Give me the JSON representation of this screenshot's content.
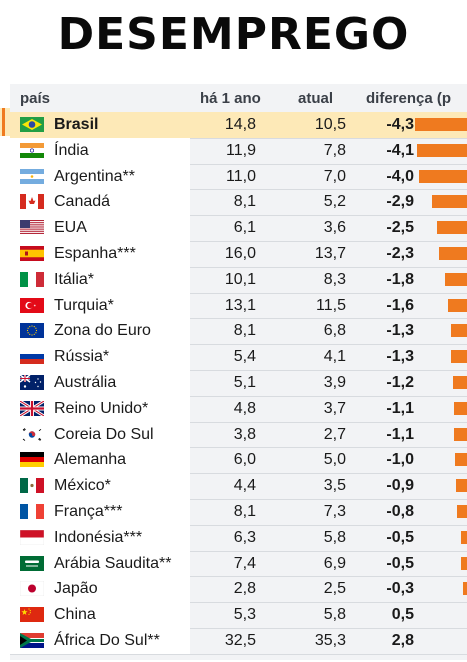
{
  "title": "DESEMPREGO",
  "columns": {
    "country": "país",
    "year_ago": "há 1 ano",
    "current": "atual",
    "difference": "diferença (p"
  },
  "highlight_color": "#fde9b7",
  "bar_color": "#ef7a1f",
  "chart_data": {
    "type": "table",
    "rows": [
      {
        "country": "Brasil",
        "flag": "brazil-flag-icon",
        "year_ago": "14,8",
        "current": "10,5",
        "difference": "-4,3",
        "diff_value": -4.3,
        "highlight": true
      },
      {
        "country": "Índia",
        "flag": "india-flag-icon",
        "year_ago": "11,9",
        "current": "7,8",
        "difference": "-4,1",
        "diff_value": -4.1
      },
      {
        "country": "Argentina**",
        "flag": "argentina-flag-icon",
        "year_ago": "11,0",
        "current": "7,0",
        "difference": "-4,0",
        "diff_value": -4.0
      },
      {
        "country": "Canadá",
        "flag": "canada-flag-icon",
        "year_ago": "8,1",
        "current": "5,2",
        "difference": "-2,9",
        "diff_value": -2.9
      },
      {
        "country": "EUA",
        "flag": "usa-flag-icon",
        "year_ago": "6,1",
        "current": "3,6",
        "difference": "-2,5",
        "diff_value": -2.5
      },
      {
        "country": "Espanha***",
        "flag": "spain-flag-icon",
        "year_ago": "16,0",
        "current": "13,7",
        "difference": "-2,3",
        "diff_value": -2.3
      },
      {
        "country": "Itália*",
        "flag": "italy-flag-icon",
        "year_ago": "10,1",
        "current": "8,3",
        "difference": "-1,8",
        "diff_value": -1.8
      },
      {
        "country": "Turquia*",
        "flag": "turkey-flag-icon",
        "year_ago": "13,1",
        "current": "11,5",
        "difference": "-1,6",
        "diff_value": -1.6
      },
      {
        "country": "Zona do Euro",
        "flag": "eurozone-flag-icon",
        "year_ago": "8,1",
        "current": "6,8",
        "difference": "-1,3",
        "diff_value": -1.3
      },
      {
        "country": "Rússia*",
        "flag": "russia-flag-icon",
        "year_ago": "5,4",
        "current": "4,1",
        "difference": "-1,3",
        "diff_value": -1.3
      },
      {
        "country": "Austrália",
        "flag": "australia-flag-icon",
        "year_ago": "5,1",
        "current": "3,9",
        "difference": "-1,2",
        "diff_value": -1.2
      },
      {
        "country": "Reino Unido*",
        "flag": "uk-flag-icon",
        "year_ago": "4,8",
        "current": "3,7",
        "difference": "-1,1",
        "diff_value": -1.1
      },
      {
        "country": "Coreia Do Sul",
        "flag": "south-korea-flag-icon",
        "year_ago": "3,8",
        "current": "2,7",
        "difference": "-1,1",
        "diff_value": -1.1
      },
      {
        "country": "Alemanha",
        "flag": "germany-flag-icon",
        "year_ago": "6,0",
        "current": "5,0",
        "difference": "-1,0",
        "diff_value": -1.0
      },
      {
        "country": "México*",
        "flag": "mexico-flag-icon",
        "year_ago": "4,4",
        "current": "3,5",
        "difference": "-0,9",
        "diff_value": -0.9
      },
      {
        "country": "França***",
        "flag": "france-flag-icon",
        "year_ago": "8,1",
        "current": "7,3",
        "difference": "-0,8",
        "diff_value": -0.8
      },
      {
        "country": "Indonésia***",
        "flag": "indonesia-flag-icon",
        "year_ago": "6,3",
        "current": "5,8",
        "difference": "-0,5",
        "diff_value": -0.5
      },
      {
        "country": "Arábia Saudita**",
        "flag": "saudi-arabia-flag-icon",
        "year_ago": "7,4",
        "current": "6,9",
        "difference": "-0,5",
        "diff_value": -0.5
      },
      {
        "country": "Japão",
        "flag": "japan-flag-icon",
        "year_ago": "2,8",
        "current": "2,5",
        "difference": "-0,3",
        "diff_value": -0.3
      },
      {
        "country": "China",
        "flag": "china-flag-icon",
        "year_ago": "5,3",
        "current": "5,8",
        "difference": "0,5",
        "diff_value": 0.5
      },
      {
        "country": "África Do Sul**",
        "flag": "south-africa-flag-icon",
        "year_ago": "32,5",
        "current": "35,3",
        "difference": "2,8",
        "diff_value": 2.8
      }
    ]
  }
}
